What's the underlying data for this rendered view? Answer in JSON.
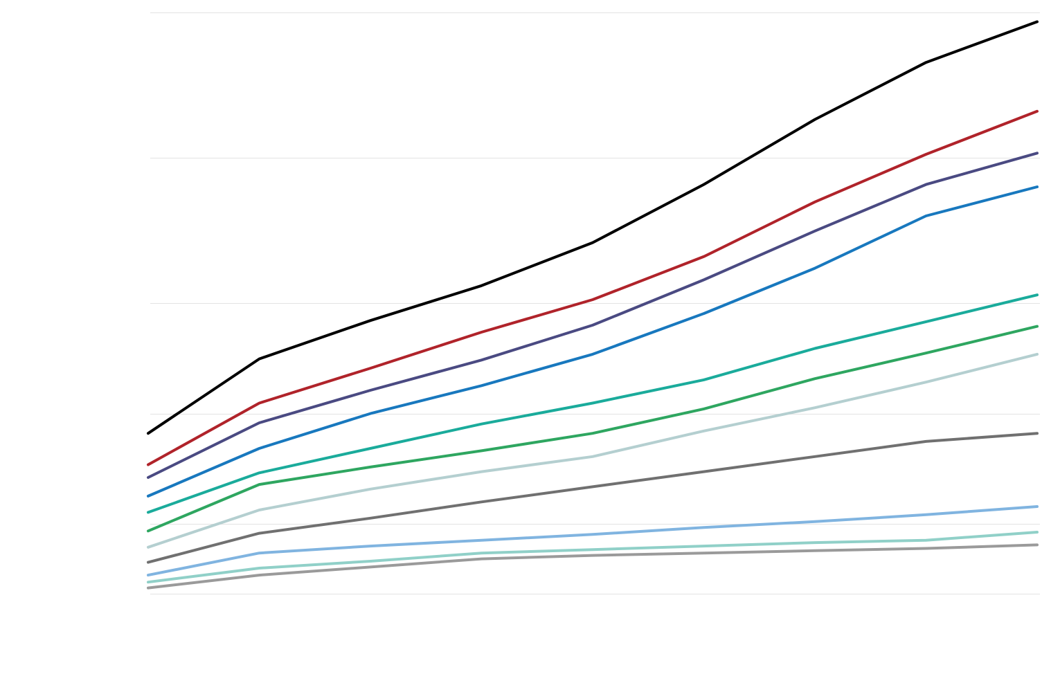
{
  "chart_data": {
    "type": "line",
    "title": "",
    "xlabel": "",
    "ylabel": "",
    "x": [
      0,
      1,
      2,
      3,
      4,
      5,
      6,
      7,
      8
    ],
    "xlim": [
      0,
      8
    ],
    "ylim": [
      0,
      100
    ],
    "grid": true,
    "gridlines_y": [
      0,
      12,
      31,
      50,
      75,
      100
    ],
    "legend": "none",
    "series": [
      {
        "color": "#000000",
        "values": [
          27.6,
          40.4,
          47.0,
          53.0,
          60.4,
          70.4,
          81.6,
          91.4,
          98.4
        ]
      },
      {
        "color": "#b0232a",
        "values": [
          22.2,
          32.8,
          38.8,
          45.0,
          50.6,
          58.0,
          67.4,
          75.6,
          83.0
        ]
      },
      {
        "color": "#4a4a82",
        "values": [
          20.0,
          29.4,
          35.0,
          40.2,
          46.2,
          54.0,
          62.4,
          70.4,
          75.8
        ]
      },
      {
        "color": "#1878be",
        "values": [
          16.8,
          25.0,
          31.0,
          35.8,
          41.2,
          48.2,
          56.0,
          65.0,
          70.0
        ]
      },
      {
        "color": "#1aab9b",
        "values": [
          14.0,
          20.8,
          25.0,
          29.2,
          32.8,
          36.8,
          42.2,
          46.8,
          51.4
        ]
      },
      {
        "color": "#2ea660",
        "values": [
          10.8,
          18.8,
          21.8,
          24.6,
          27.6,
          31.8,
          37.0,
          41.4,
          46.0
        ]
      },
      {
        "color": "#b4cfd0",
        "values": [
          8.0,
          14.4,
          18.0,
          21.0,
          23.6,
          28.0,
          32.0,
          36.4,
          41.2
        ]
      },
      {
        "color": "#707070",
        "values": [
          5.4,
          10.4,
          13.0,
          15.8,
          18.4,
          21.0,
          23.6,
          26.2,
          27.6
        ]
      },
      {
        "color": "#80b4e0",
        "values": [
          3.2,
          7.0,
          8.2,
          9.2,
          10.2,
          11.4,
          12.4,
          13.6,
          15.0
        ]
      },
      {
        "color": "#90d0c8",
        "values": [
          2.0,
          4.4,
          5.6,
          7.0,
          7.6,
          8.2,
          8.8,
          9.2,
          10.6
        ]
      },
      {
        "color": "#9a9a9a",
        "values": [
          1.0,
          3.2,
          4.6,
          6.0,
          6.6,
          7.0,
          7.4,
          7.8,
          8.4
        ]
      }
    ]
  }
}
